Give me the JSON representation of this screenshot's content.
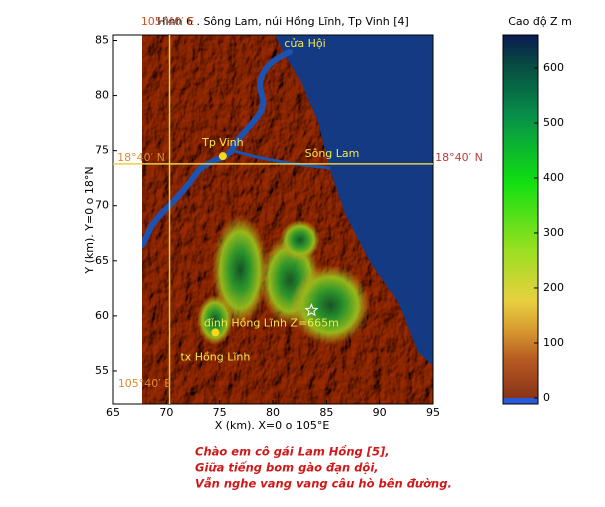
{
  "chart_data": {
    "type": "map",
    "title": "Hình 6 . Sông Lam, núi Hồng Lĩnh, Tp Vinh [4]",
    "xlabel": "X (km). X=0 o 105°E",
    "ylabel": "Y (km). Y=0 o 18°N",
    "xlim": [
      65,
      95
    ],
    "ylim": [
      52,
      85.5
    ],
    "xticks": [
      65,
      70,
      75,
      80,
      85,
      90,
      95
    ],
    "yticks": [
      55,
      60,
      65,
      70,
      75,
      80,
      85
    ],
    "lon_line": {
      "x": 70.3,
      "label": "105°40′ E"
    },
    "lat_line": {
      "y": 73.8,
      "label": "18°40′ N"
    },
    "points": [
      {
        "name": "Tp Vinh",
        "x": 75.3,
        "y": 74.5,
        "marker": "dot"
      },
      {
        "name": "tx Hồng Lĩnh",
        "x": 74.6,
        "y": 58.5,
        "marker": "dot"
      },
      {
        "name": "đỉnh Hồng Lĩnh Z=665m",
        "x": 83.6,
        "y": 60.5,
        "marker": "star"
      }
    ],
    "annotations": [
      "cửa Hội",
      "Sông Lam"
    ],
    "colorbar": {
      "label": "Cao độ Z m",
      "lim": [
        -11,
        660
      ],
      "ticks": [
        0,
        100,
        200,
        300,
        400,
        500,
        600
      ]
    },
    "caption": [
      "Chào em cô gái Lam Hồng [5],",
      "Giữa tiếng bom gào đạn dội,",
      "Vẫn nghe vang vang câu hò bên đường."
    ]
  }
}
